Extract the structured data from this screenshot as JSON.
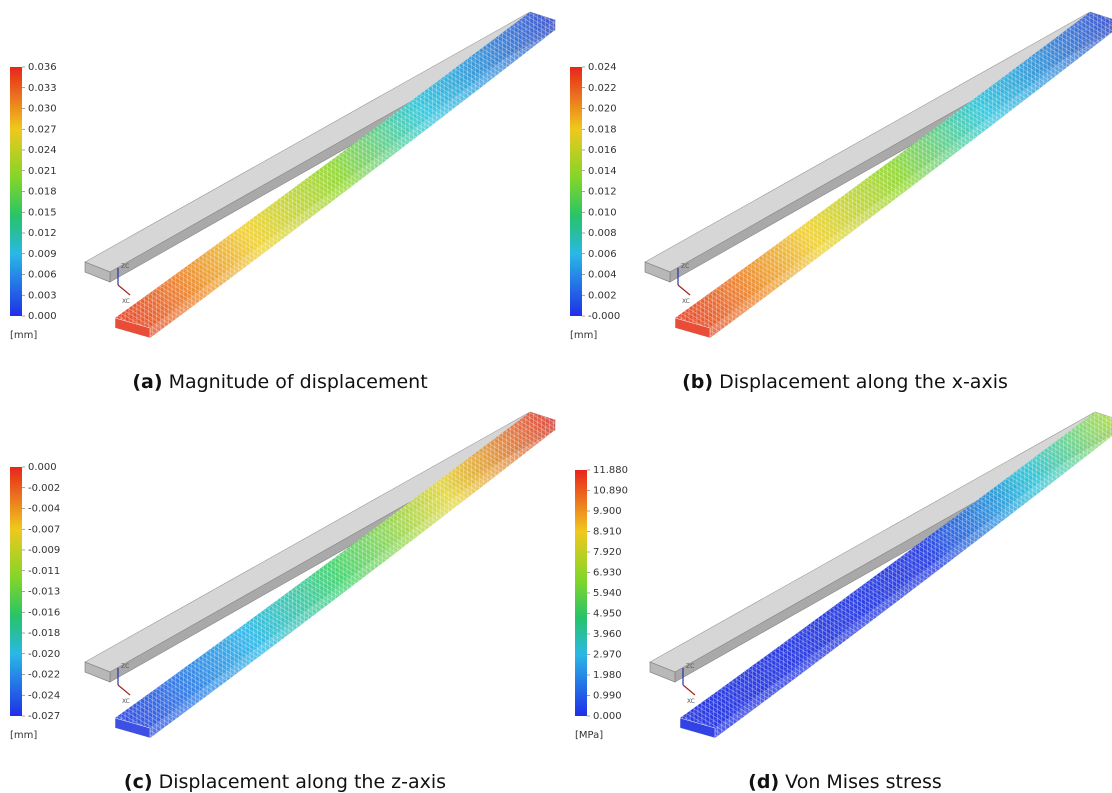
{
  "triad": {
    "z": "ZC",
    "x": "XC"
  },
  "panels": [
    {
      "label": "(a)",
      "caption": "Magnitude of displacement",
      "unit": "[mm]",
      "ticks": [
        "0.036",
        "0.033",
        "0.030",
        "0.027",
        "0.024",
        "0.021",
        "0.018",
        "0.015",
        "0.012",
        "0.009",
        "0.006",
        "0.003",
        "0.000"
      ]
    },
    {
      "label": "(b)",
      "caption": "Displacement along the x-axis",
      "unit": "[mm]",
      "ticks": [
        "0.024",
        "0.022",
        "0.020",
        "0.018",
        "0.016",
        "0.014",
        "0.012",
        "0.010",
        "0.008",
        "0.006",
        "0.004",
        "0.002",
        "-0.000"
      ]
    },
    {
      "label": "(c)",
      "caption": "Displacement along the z-axis",
      "unit": "[mm]",
      "ticks": [
        "0.000",
        "-0.002",
        "-0.004",
        "-0.007",
        "-0.009",
        "-0.011",
        "-0.013",
        "-0.016",
        "-0.018",
        "-0.020",
        "-0.022",
        "-0.024",
        "-0.027"
      ]
    },
    {
      "label": "(d)",
      "caption": "Von Mises stress",
      "unit": "[MPa]",
      "ticks": [
        "11.880",
        "10.890",
        "9.900",
        "8.910",
        "7.920",
        "6.930",
        "5.940",
        "4.950",
        "3.960",
        "2.970",
        "1.980",
        "0.990",
        "0.000"
      ]
    }
  ]
}
